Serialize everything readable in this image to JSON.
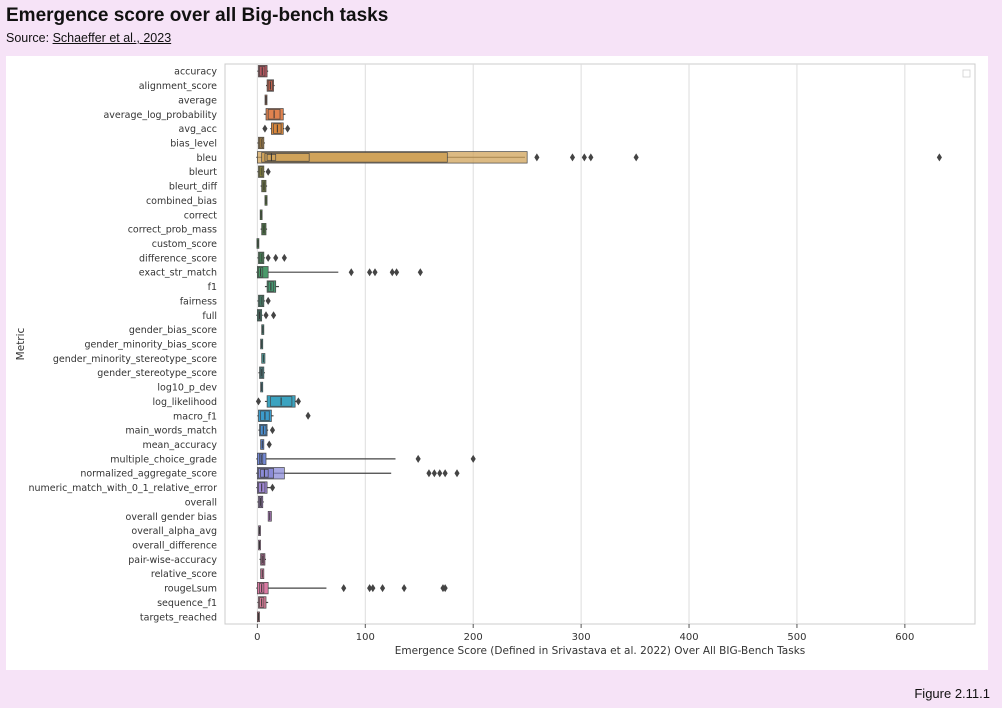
{
  "header": {
    "title": "Emergence score over all Big-bench tasks",
    "source_prefix": "Source: ",
    "source_link": "Schaeffer et al., 2023"
  },
  "figure_label": "Figure 2.11.1",
  "chart_data": {
    "type": "boxen",
    "orientation": "horizontal",
    "xlabel": "Emergence Score (Defined in Srivastava et al. 2022) Over All BIG-Bench Tasks",
    "ylabel": "Metric",
    "xlim": [
      -30,
      665
    ],
    "xticks": [
      0,
      100,
      200,
      300,
      400,
      500,
      600
    ],
    "grid": "vertical",
    "legend": "top-right (empty)",
    "categories": [
      {
        "name": "accuracy",
        "color": "#b5575f",
        "boxes": [
          [
            1,
            9
          ],
          [
            2,
            7
          ]
        ],
        "whiskers": [
          0,
          10
        ],
        "outliers": []
      },
      {
        "name": "alignment_score",
        "color": "#c4634d",
        "boxes": [
          [
            9,
            15
          ],
          [
            10,
            14
          ]
        ],
        "whiskers": [
          8,
          16
        ],
        "outliers": []
      },
      {
        "name": "average",
        "color": "#cf7f5d",
        "boxes": [
          [
            7.5,
            8.5
          ]
        ],
        "whiskers": [
          7.5,
          8.5
        ],
        "outliers": []
      },
      {
        "name": "average_log_probability",
        "color": "#e0824f",
        "boxes": [
          [
            8,
            24
          ],
          [
            10,
            21
          ]
        ],
        "whiskers": [
          6,
          26
        ],
        "outliers": []
      },
      {
        "name": "avg_acc",
        "color": "#d8873d",
        "boxes": [
          [
            13,
            24
          ],
          [
            15,
            22
          ]
        ],
        "whiskers": [
          12,
          25
        ],
        "outliers": [
          7,
          28
        ]
      },
      {
        "name": "bias_level",
        "color": "#c99648",
        "boxes": [
          [
            1,
            6
          ],
          [
            2,
            5
          ]
        ],
        "whiskers": [
          0,
          7
        ],
        "outliers": []
      },
      {
        "name": "bleu",
        "color": "#d0a35a",
        "boxes": [
          [
            0,
            250
          ],
          [
            4,
            176
          ],
          [
            7,
            48
          ],
          [
            9,
            17
          ]
        ],
        "whiskers": [
          -1,
          248
        ],
        "outliers": [
          259,
          292,
          303,
          309,
          351,
          632
        ]
      },
      {
        "name": "bleurt",
        "color": "#9e9a3f",
        "boxes": [
          [
            1,
            6
          ],
          [
            2,
            5
          ]
        ],
        "whiskers": [
          0,
          7
        ],
        "outliers": [
          10
        ]
      },
      {
        "name": "bleurt_diff",
        "color": "#8a9a3f",
        "boxes": [
          [
            4,
            8
          ],
          [
            5,
            7
          ]
        ],
        "whiskers": [
          3,
          9
        ],
        "outliers": []
      },
      {
        "name": "combined_bias",
        "color": "#6c9e40",
        "boxes": [
          [
            7,
            9
          ]
        ],
        "whiskers": [
          7,
          9
        ],
        "outliers": []
      },
      {
        "name": "correct",
        "color": "#5e9e47",
        "boxes": [
          [
            3,
            4
          ]
        ],
        "whiskers": [
          3,
          4
        ],
        "outliers": []
      },
      {
        "name": "correct_prob_mass",
        "color": "#56a04a",
        "boxes": [
          [
            4,
            8
          ],
          [
            5,
            7
          ]
        ],
        "whiskers": [
          3,
          9
        ],
        "outliers": []
      },
      {
        "name": "custom_score",
        "color": "#4d9e55",
        "boxes": [
          [
            0,
            1
          ]
        ],
        "whiskers": [
          0,
          1
        ],
        "outliers": []
      },
      {
        "name": "difference_score",
        "color": "#4e9e62",
        "boxes": [
          [
            1,
            6
          ],
          [
            2,
            5
          ]
        ],
        "whiskers": [
          0,
          7
        ],
        "outliers": [
          10,
          17,
          25
        ]
      },
      {
        "name": "exact_str_match",
        "color": "#4a9a6a",
        "boxes": [
          [
            0,
            10
          ],
          [
            1,
            5
          ]
        ],
        "whiskers": [
          -1,
          75
        ],
        "outliers": [
          87,
          104,
          109,
          125,
          129,
          151
        ]
      },
      {
        "name": "f1",
        "color": "#45966f",
        "boxes": [
          [
            9,
            17
          ],
          [
            10,
            15
          ]
        ],
        "whiskers": [
          7,
          20
        ],
        "outliers": []
      },
      {
        "name": "fairness",
        "color": "#4a9a7a",
        "boxes": [
          [
            1,
            6
          ],
          [
            2,
            5
          ]
        ],
        "whiskers": [
          0,
          7
        ],
        "outliers": [
          10
        ]
      },
      {
        "name": "full",
        "color": "#4a9b84",
        "boxes": [
          [
            0,
            4
          ],
          [
            1,
            3
          ]
        ],
        "whiskers": [
          -1,
          5
        ],
        "outliers": [
          8,
          15
        ]
      },
      {
        "name": "gender_bias_score",
        "color": "#4c9e8e",
        "boxes": [
          [
            4,
            6
          ]
        ],
        "whiskers": [
          4,
          6
        ],
        "outliers": []
      },
      {
        "name": "gender_minority_bias_score",
        "color": "#4ea198",
        "boxes": [
          [
            3,
            5
          ]
        ],
        "whiskers": [
          3,
          5
        ],
        "outliers": []
      },
      {
        "name": "gender_minority_stereotype_score",
        "color": "#50a3a2",
        "boxes": [
          [
            4,
            7
          ]
        ],
        "whiskers": [
          4,
          7
        ],
        "outliers": []
      },
      {
        "name": "gender_stereotype_score",
        "color": "#4ea4ab",
        "boxes": [
          [
            2,
            6
          ],
          [
            3,
            5
          ]
        ],
        "whiskers": [
          1,
          7
        ],
        "outliers": []
      },
      {
        "name": "log10_p_dev",
        "color": "#4ca5b4",
        "boxes": [
          [
            3,
            5
          ]
        ],
        "whiskers": [
          3,
          5
        ],
        "outliers": []
      },
      {
        "name": "log_likelihood",
        "color": "#3ba3c0",
        "boxes": [
          [
            9,
            35
          ],
          [
            12,
            32
          ]
        ],
        "whiskers": [
          7,
          37
        ],
        "outliers": [
          1,
          38
        ]
      },
      {
        "name": "macro_f1",
        "color": "#3c9bcb",
        "boxes": [
          [
            1,
            13
          ],
          [
            3,
            11
          ]
        ],
        "whiskers": [
          0,
          15
        ],
        "outliers": [
          47
        ]
      },
      {
        "name": "main_words_match",
        "color": "#4b8fd0",
        "boxes": [
          [
            2,
            9
          ],
          [
            3,
            8
          ]
        ],
        "whiskers": [
          1,
          10
        ],
        "outliers": [
          14
        ]
      },
      {
        "name": "mean_accuracy",
        "color": "#5e87d2",
        "boxes": [
          [
            3,
            6
          ]
        ],
        "whiskers": [
          3,
          6
        ],
        "outliers": [
          11
        ]
      },
      {
        "name": "multiple_choice_grade",
        "color": "#7389d6",
        "boxes": [
          [
            0,
            8
          ],
          [
            2,
            5
          ]
        ],
        "whiskers": [
          -1,
          128
        ],
        "outliers": [
          149,
          200
        ]
      },
      {
        "name": "normalized_aggregate_score",
        "color": "#8a8ad6",
        "boxes": [
          [
            0,
            25
          ],
          [
            1,
            15
          ],
          [
            3,
            10
          ]
        ],
        "whiskers": [
          -1,
          124
        ],
        "outliers": [
          159,
          164,
          169,
          174,
          185
        ]
      },
      {
        "name": "numeric_match_with_0_1_relative_error",
        "color": "#9f87d3",
        "boxes": [
          [
            0,
            9
          ],
          [
            1,
            7
          ]
        ],
        "whiskers": [
          -1,
          12
        ],
        "outliers": [
          14
        ]
      },
      {
        "name": "overall",
        "color": "#ab85cf",
        "boxes": [
          [
            1,
            5
          ],
          [
            2,
            4
          ]
        ],
        "whiskers": [
          0,
          6
        ],
        "outliers": []
      },
      {
        "name": "overall gender bias",
        "color": "#b780c8",
        "boxes": [
          [
            10,
            13
          ]
        ],
        "whiskers": [
          10,
          13
        ],
        "outliers": []
      },
      {
        "name": "overall_alpha_avg",
        "color": "#c27dbf",
        "boxes": [
          [
            1.5,
            2.5
          ]
        ],
        "whiskers": [
          1.5,
          2.5
        ],
        "outliers": []
      },
      {
        "name": "overall_difference",
        "color": "#cb7ab6",
        "boxes": [
          [
            1.5,
            2.5
          ]
        ],
        "whiskers": [
          1.5,
          2.5
        ],
        "outliers": []
      },
      {
        "name": "pair-wise-accuracy",
        "color": "#d178ab",
        "boxes": [
          [
            3,
            7
          ],
          [
            4,
            6
          ]
        ],
        "whiskers": [
          2,
          8
        ],
        "outliers": []
      },
      {
        "name": "relative_score",
        "color": "#d47ba0",
        "boxes": [
          [
            3,
            6
          ]
        ],
        "whiskers": [
          3,
          6
        ],
        "outliers": []
      },
      {
        "name": "rougeLsum",
        "color": "#db7aa3",
        "boxes": [
          [
            0,
            10
          ],
          [
            2,
            6
          ]
        ],
        "whiskers": [
          -1,
          64
        ],
        "outliers": [
          80,
          104,
          107,
          116,
          136,
          172,
          174
        ]
      },
      {
        "name": "sequence_f1",
        "color": "#dc7e9a",
        "boxes": [
          [
            1,
            8
          ],
          [
            2,
            6
          ]
        ],
        "whiskers": [
          0,
          10
        ],
        "outliers": []
      },
      {
        "name": "targets_reached",
        "color": "#d98892",
        "boxes": [
          [
            0,
            2
          ]
        ],
        "whiskers": [
          0,
          2
        ],
        "outliers": []
      }
    ]
  }
}
